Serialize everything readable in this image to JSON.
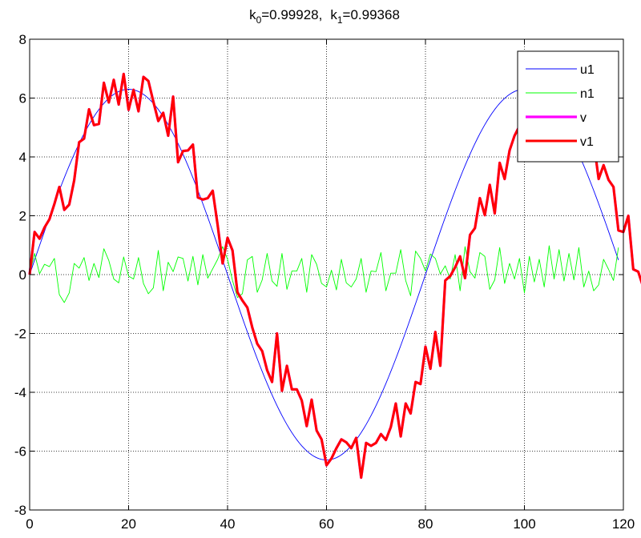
{
  "chart_data": {
    "type": "line",
    "title": {
      "k0_sym": "k",
      "k0_sub": "0",
      "k0_val": "=0.99928,",
      "k1_sym": "k",
      "k1_sub": "1",
      "k1_val": "=0.99368"
    },
    "xlabel": "",
    "ylabel": "",
    "xlim": [
      0,
      120
    ],
    "ylim": [
      -8,
      8
    ],
    "x_ticks": [
      0,
      20,
      40,
      60,
      80,
      100,
      120
    ],
    "y_ticks": [
      8,
      6,
      4,
      2,
      0,
      -2,
      -4,
      -6,
      -8
    ],
    "grid": true,
    "legend_position": "top-right",
    "colors": {
      "u1": "#0000ff",
      "n1": "#00ff00",
      "v": "#ff00ff",
      "v1": "#ff0000",
      "axis": "#000000",
      "grid": "#000000"
    },
    "series": [
      {
        "name": "u1",
        "amplitude": 6.3,
        "period": 80,
        "x_start": 0,
        "x_end": 119
      },
      {
        "name": "n1",
        "x_start": 0,
        "step": 1,
        "values": [
          0,
          0.72,
          0.03,
          0.35,
          0.27,
          0.55,
          -0.68,
          -0.95,
          -0.62,
          0.38,
          0.22,
          0.58,
          -0.2,
          0.38,
          -0.1,
          0.88,
          0.48,
          -0.15,
          -0.28,
          0.6,
          -0.05,
          -0.15,
          0.58,
          -0.3,
          -0.65,
          -0.45,
          0.82,
          -0.55,
          0.42,
          0.1,
          0.6,
          0.55,
          -0.22,
          0.62,
          -0.35,
          0.68,
          -0.12,
          0.2,
          0.52,
          0.95,
          0.52,
          -0.2,
          -0.78,
          -0.65,
          0.5,
          0.62,
          -0.6,
          -0.18,
          0.72,
          -0.22,
          -0.4,
          0.72,
          -0.5,
          0.12,
          0.12,
          0.55,
          -0.6,
          0.68,
          0.35,
          -0.3,
          -0.42,
          0.15,
          -0.52,
          0.52,
          -0.28,
          -0.42,
          -0.15,
          0.55,
          -0.6,
          0.12,
          0.1,
          0.75,
          -0.55,
          0.05,
          0.05,
          0.85,
          -0.2,
          -0.72,
          0.8,
          0.55,
          0.12,
          0.7,
          0.55,
          0.02,
          0.3,
          -0.15,
          0.68,
          -0.55,
          0.95,
          0.1,
          -0.12,
          0.75,
          0.62,
          -0.5,
          -0.18,
          0.92,
          -0.3,
          0.38,
          -0.15,
          0.55,
          -0.62,
          0.62,
          -0.25,
          0.52,
          -0.42,
          0.98,
          -0.15,
          0.85,
          -0.22,
          0.72,
          -0.18,
          0.92,
          -0.42,
          0.12,
          -0.55,
          -0.35,
          0.52,
          0.18,
          -0.2,
          0.92
        ]
      },
      {
        "name": "v",
        "x_start": 0,
        "step": 1,
        "values": [
          0,
          1.45,
          1.22,
          1.6,
          1.88,
          2.4,
          2.98,
          2.2,
          2.38,
          3.2,
          4.5,
          4.62,
          5.62,
          5.08,
          5.12,
          6.52,
          5.85,
          6.62,
          5.78,
          6.82,
          5.6,
          6.28,
          5.55,
          6.72,
          6.58,
          5.88,
          5.22,
          5.5,
          4.72,
          6.05,
          3.82,
          4.2,
          4.22,
          4.42,
          2.62,
          2.55,
          2.6,
          2.85,
          1.68,
          0.38,
          1.25,
          0.82,
          -0.6,
          -0.88,
          -1.12,
          -1.8,
          -2.35,
          -2.6,
          -3.25,
          -3.65,
          -2.0,
          -3.95,
          -3.1,
          -3.9,
          -3.9,
          -4.28,
          -5.15,
          -4.25,
          -5.3,
          -5.6,
          -6.48,
          -6.25,
          -5.9,
          -5.6,
          -5.7,
          -5.9,
          -5.55,
          -6.9,
          -5.72,
          -5.82,
          -5.72,
          -5.42,
          -5.62,
          -5.18,
          -4.38,
          -5.5,
          -4.38,
          -4.72,
          -3.65,
          -3.72,
          -2.45,
          -3.2,
          -1.95,
          -3.1,
          -0.2,
          -0.05,
          0.25,
          0.62,
          -0.12,
          1.35,
          1.58,
          2.6,
          2.02,
          3.05,
          2.08,
          3.8,
          3.25,
          4.22,
          4.72,
          5.05,
          3.98,
          5.9,
          6.08,
          6.0,
          6.7,
          6.2,
          7.18,
          6.3,
          6.62,
          5.48,
          6.3,
          5.42,
          4.95,
          5.05,
          4.52,
          3.25,
          3.72,
          3.22,
          2.98,
          1.5,
          1.45,
          2.0,
          0.18,
          0.1,
          -0.42
        ]
      },
      {
        "name": "v1",
        "x_start": 0,
        "step": 1,
        "values": [
          0,
          1.45,
          1.22,
          1.6,
          1.88,
          2.4,
          2.98,
          2.2,
          2.38,
          3.2,
          4.5,
          4.62,
          5.62,
          5.08,
          5.12,
          6.52,
          5.85,
          6.62,
          5.78,
          6.82,
          5.6,
          6.28,
          5.55,
          6.72,
          6.58,
          5.88,
          5.22,
          5.5,
          4.72,
          6.05,
          3.82,
          4.2,
          4.22,
          4.42,
          2.62,
          2.55,
          2.6,
          2.85,
          1.68,
          0.38,
          1.25,
          0.82,
          -0.6,
          -0.88,
          -1.12,
          -1.8,
          -2.35,
          -2.6,
          -3.25,
          -3.65,
          -2.0,
          -3.95,
          -3.1,
          -3.9,
          -3.9,
          -4.28,
          -5.15,
          -4.25,
          -5.3,
          -5.6,
          -6.48,
          -6.25,
          -5.9,
          -5.6,
          -5.7,
          -5.9,
          -5.55,
          -6.9,
          -5.72,
          -5.82,
          -5.72,
          -5.42,
          -5.62,
          -5.18,
          -4.38,
          -5.5,
          -4.38,
          -4.72,
          -3.65,
          -3.72,
          -2.45,
          -3.2,
          -1.95,
          -3.1,
          -0.2,
          -0.05,
          0.25,
          0.62,
          -0.12,
          1.35,
          1.58,
          2.6,
          2.02,
          3.05,
          2.08,
          3.8,
          3.25,
          4.22,
          4.72,
          5.05,
          3.98,
          5.9,
          6.08,
          6.0,
          6.7,
          6.2,
          7.18,
          6.3,
          6.62,
          5.48,
          6.3,
          5.42,
          4.95,
          5.05,
          4.52,
          3.25,
          3.72,
          3.22,
          2.98,
          1.5,
          1.45,
          2.0,
          0.18,
          0.1,
          -0.42
        ]
      }
    ],
    "legend": [
      {
        "label": "u1",
        "series": "u1"
      },
      {
        "label": "n1",
        "series": "n1"
      },
      {
        "label": "v",
        "series": "v"
      },
      {
        "label": "v1",
        "series": "v1"
      }
    ]
  }
}
